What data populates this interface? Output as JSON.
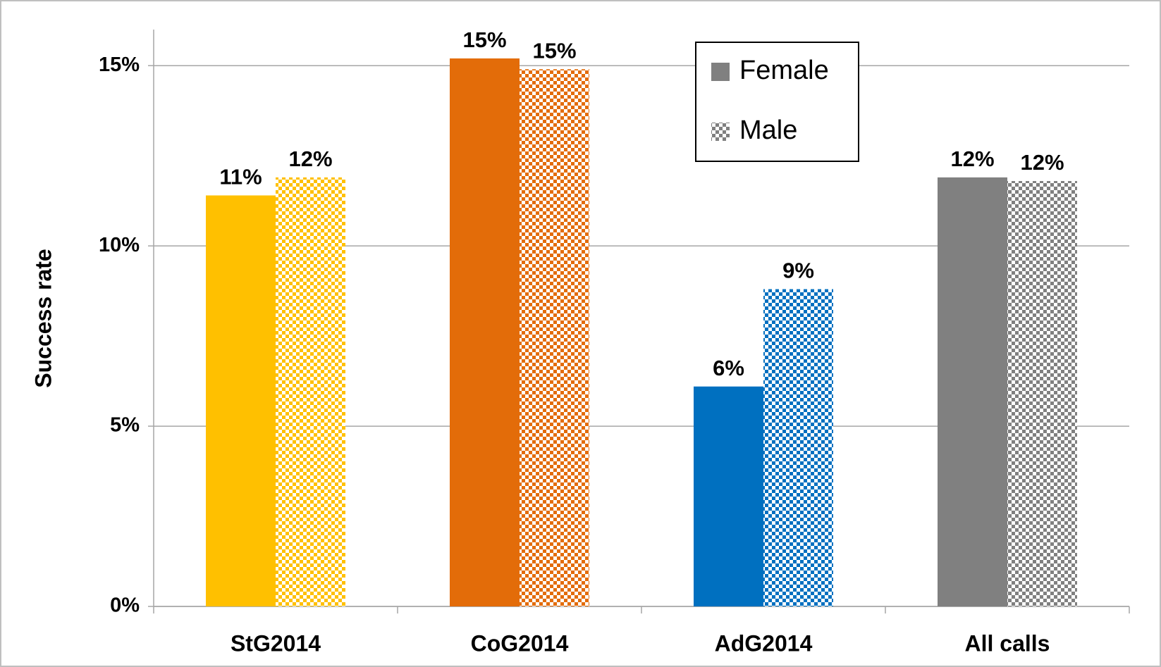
{
  "chart_data": {
    "type": "bar",
    "y_axis_label": "Success rate",
    "categories": [
      "StG2014",
      "CoG2014",
      "AdG2014",
      "All calls"
    ],
    "category_colors": [
      "#ffc000",
      "#e36c09",
      "#0070c0",
      "#808080"
    ],
    "series": [
      {
        "name": "Female",
        "color": "#808080",
        "pattern": "solid",
        "values": [
          11.4,
          15.2,
          6.1,
          11.9
        ],
        "value_labels": [
          "11%",
          "15%",
          "6%",
          "12%"
        ]
      },
      {
        "name": "Male",
        "color": "#808080",
        "pattern": "checker",
        "values": [
          11.9,
          14.9,
          8.8,
          11.8
        ],
        "value_labels": [
          "12%",
          "15%",
          "9%",
          "12%"
        ]
      }
    ],
    "ylim": [
      0,
      16
    ],
    "yticks": [
      {
        "value": 0,
        "label": "0%"
      },
      {
        "value": 5,
        "label": "5%"
      },
      {
        "value": 10,
        "label": "10%"
      },
      {
        "value": 15,
        "label": "15%"
      }
    ],
    "grid": true,
    "legend": "top-right"
  }
}
